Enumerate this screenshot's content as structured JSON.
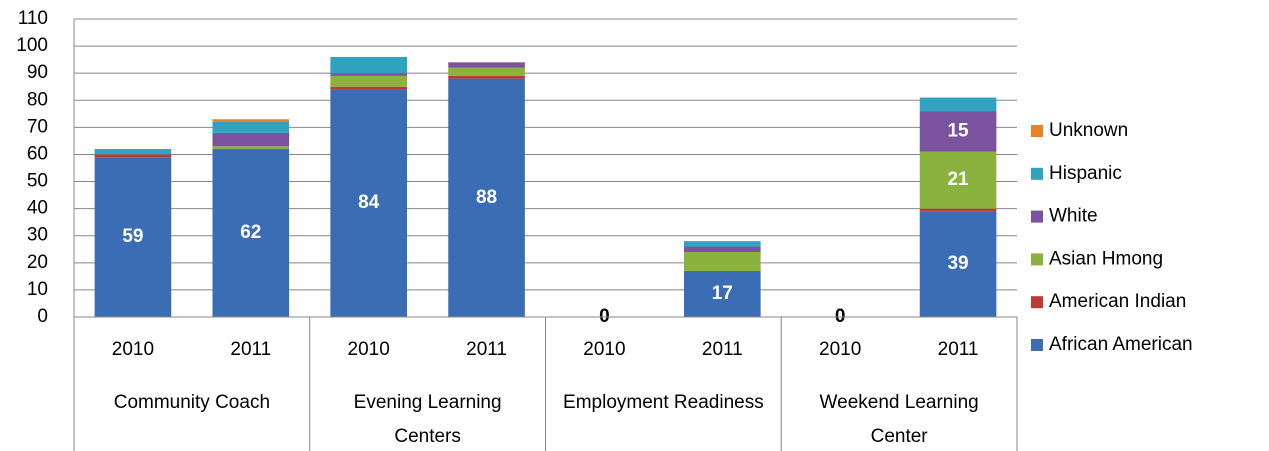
{
  "chart_data": {
    "type": "stacked_bar",
    "categories": [
      "2010",
      "2011",
      "2010",
      "2011",
      "2010",
      "2011",
      "2010",
      "2011"
    ],
    "groups": [
      "Community Coach",
      "Evening Learning Centers",
      "Employment Readiness",
      "Weekend Learning Center"
    ],
    "series": [
      {
        "name": "African American",
        "color": "#3a6db4",
        "values": [
          59,
          62,
          84,
          88,
          0,
          17,
          0,
          39
        ],
        "value_labels": [
          "59",
          "62",
          "84",
          "88",
          "0",
          "17",
          "0",
          "39"
        ]
      },
      {
        "name": "American Indian",
        "color": "#be3a34",
        "values": [
          1,
          0,
          1,
          1,
          0,
          0,
          0,
          1
        ],
        "value_labels": [
          null,
          null,
          null,
          null,
          null,
          null,
          null,
          null
        ]
      },
      {
        "name": "Asian Hmong",
        "color": "#8bb23f",
        "values": [
          0,
          1,
          4,
          3,
          0,
          7,
          0,
          21
        ],
        "value_labels": [
          null,
          null,
          null,
          null,
          null,
          null,
          null,
          "21"
        ]
      },
      {
        "name": "White",
        "color": "#7a529e",
        "values": [
          0,
          5,
          1,
          2,
          0,
          2,
          0,
          15
        ],
        "value_labels": [
          null,
          null,
          null,
          null,
          null,
          null,
          null,
          "15"
        ]
      },
      {
        "name": "Hispanic",
        "color": "#2fa3c0",
        "values": [
          2,
          4,
          6,
          0,
          0,
          2,
          0,
          5
        ],
        "value_labels": [
          null,
          null,
          null,
          null,
          null,
          null,
          null,
          null
        ]
      },
      {
        "name": "Unknown",
        "color": "#ea8122",
        "values": [
          0,
          1,
          0,
          0,
          0,
          0,
          0,
          0
        ],
        "value_labels": [
          null,
          null,
          null,
          null,
          null,
          null,
          null,
          null
        ]
      }
    ],
    "ylim": [
      0,
      110
    ],
    "yticks": [
      0,
      10,
      20,
      30,
      40,
      50,
      60,
      70,
      80,
      90,
      100,
      110
    ],
    "grid": true,
    "legend": "right"
  }
}
